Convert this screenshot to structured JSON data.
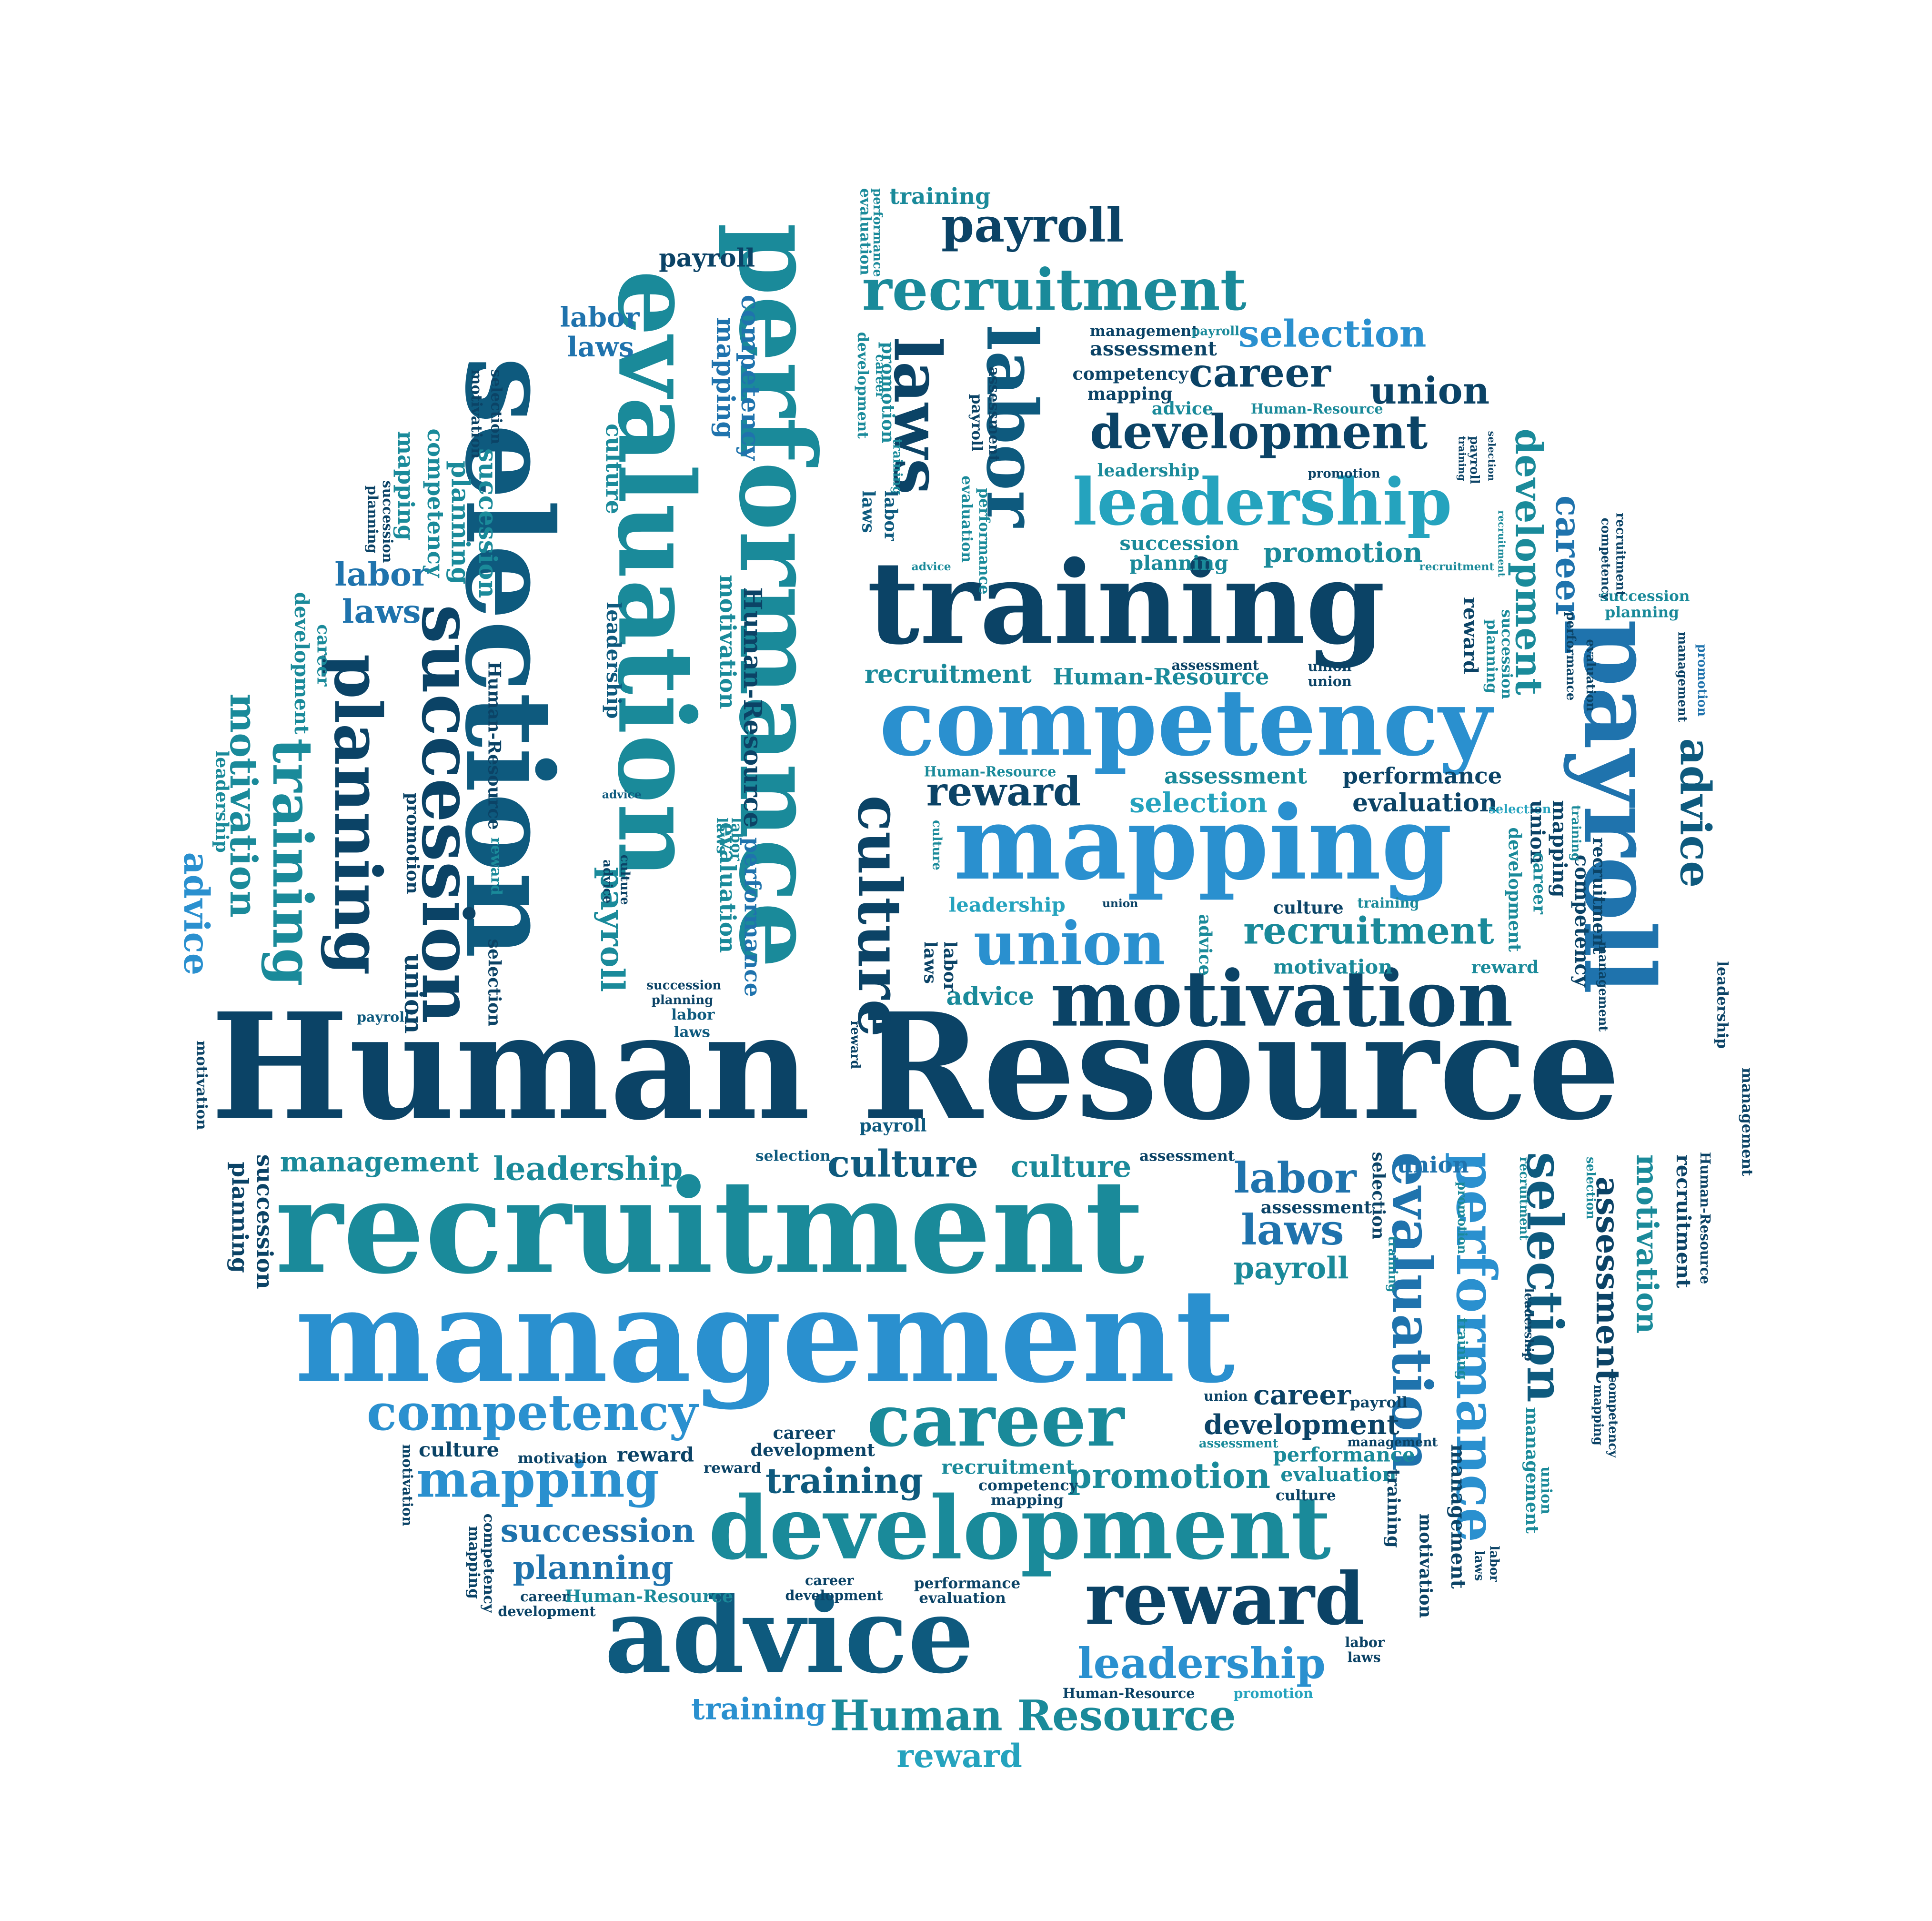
{
  "colors": {
    "navy": "#0b4366",
    "deep": "#0e5a7e",
    "teal": "#1a8a9a",
    "aqua": "#25a3be",
    "sky": "#2a90cf",
    "blue": "#1f73ad"
  },
  "words": {
    "human_resource": "Human Resource",
    "recruitment": "recruitment",
    "management": "management",
    "training": "training",
    "competency": "competency",
    "mapping": "mapping",
    "motivation": "motivation",
    "development": "development",
    "advice": "advice",
    "reward": "reward",
    "career": "career",
    "leadership": "leadership",
    "union": "union",
    "payroll": "payroll",
    "selection": "selection",
    "performance": "performance",
    "evaluation": "evaluation",
    "succession": "succession",
    "planning": "planning",
    "culture": "culture",
    "labor": "labor",
    "laws": "laws",
    "promotion": "promotion",
    "assessment": "assessment",
    "human_resource_hyphen": "Human-Resource"
  }
}
